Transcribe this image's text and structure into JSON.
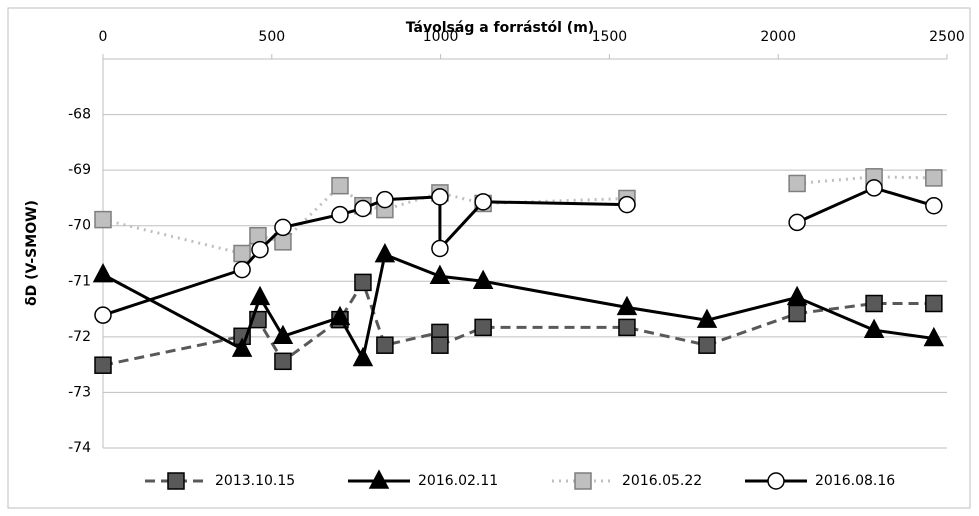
{
  "chart_data": {
    "type": "line",
    "xlabel": "Távolság a forrástól (m)",
    "ylabel": "δD (V-SMOW)",
    "xlim": [
      0,
      2500
    ],
    "xticks": [
      0,
      500,
      1000,
      1500,
      2000,
      2500
    ],
    "ylim": [
      -74,
      -67
    ],
    "yticks": [
      -74,
      -73,
      -72,
      -71,
      -70,
      -69,
      -68
    ],
    "grid": true,
    "legend": "bottom",
    "series": [
      {
        "name": "2013.10.15",
        "color": "#595959",
        "line": "dashed",
        "marker": "square",
        "x": [
          0,
          412,
          459,
          533,
          702,
          770,
          835,
          998,
          998,
          1126,
          1552,
          1789,
          2056,
          2284,
          2461
        ],
        "values": [
          -72.51,
          -71.99,
          -71.69,
          -72.44,
          -71.69,
          -71.02,
          -72.15,
          -71.92,
          -72.15,
          -71.83,
          -71.83,
          -72.15,
          -71.58,
          -71.4,
          -71.4
        ]
      },
      {
        "name": "2016.02.11",
        "color": "#000000",
        "line": "solid",
        "marker": "triangle",
        "x": [
          0,
          412,
          465,
          533,
          702,
          770,
          835,
          998,
          1126,
          1552,
          1789,
          2056,
          2284,
          2461
        ],
        "values": [
          -70.88,
          -72.22,
          -71.29,
          -71.99,
          -71.65,
          -72.39,
          -70.52,
          -70.91,
          -71.0,
          -71.47,
          -71.7,
          -71.29,
          -71.88,
          -72.03
        ]
      },
      {
        "name": "2016.05.22",
        "color": "#bfbfbf",
        "line": "dotted",
        "marker": "square",
        "x": [
          0,
          412,
          459,
          533,
          702,
          770,
          835,
          998,
          1126,
          1552,
          1789,
          2056,
          2284,
          2461
        ],
        "values": [
          -69.89,
          -70.5,
          -70.18,
          -70.29,
          -69.28,
          -69.64,
          -69.71,
          -69.41,
          -69.6,
          -69.51,
          null,
          -69.24,
          -69.12,
          -69.14
        ]
      },
      {
        "name": "2016.08.16",
        "color": "#000000",
        "line": "solid",
        "marker": "circle",
        "x": [
          0,
          412,
          465,
          533,
          702,
          770,
          835,
          998,
          998,
          1126,
          1552,
          1789,
          2056,
          2284,
          2461
        ],
        "values": [
          -71.61,
          -70.79,
          -70.43,
          -70.03,
          -69.8,
          -69.69,
          -69.53,
          -69.48,
          -70.41,
          -69.57,
          -69.62,
          null,
          -69.94,
          -69.32,
          -69.64
        ]
      }
    ]
  }
}
